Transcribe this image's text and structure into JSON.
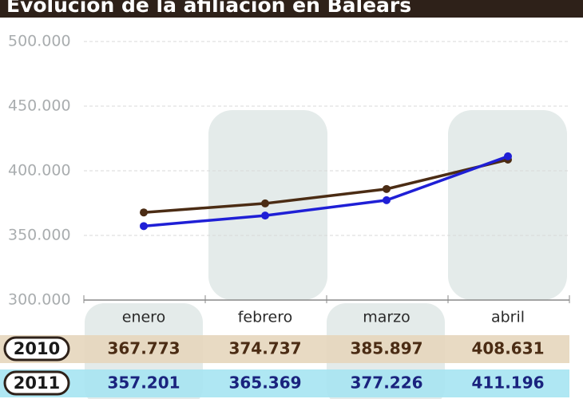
{
  "chart_data": {
    "type": "line",
    "title": "Evolución de la afiliación en Balears",
    "categories": [
      "enero",
      "febrero",
      "marzo",
      "abril"
    ],
    "series": [
      {
        "name": "2010",
        "color": "#4b2c14",
        "values": [
          367773,
          374737,
          385897,
          408631
        ],
        "value_labels": [
          "367.773",
          "374.737",
          "385.897",
          "408.631"
        ]
      },
      {
        "name": "2011",
        "color": "#1f1fd6",
        "values": [
          357201,
          365369,
          377226,
          411196
        ],
        "value_labels": [
          "357.201",
          "365.369",
          "377.226",
          "411.196"
        ]
      }
    ],
    "ylim": [
      300000,
      500000
    ],
    "yticks": [
      {
        "value": 300000,
        "label": "300.000"
      },
      {
        "value": 350000,
        "label": "350.000"
      },
      {
        "value": 400000,
        "label": "400.000"
      },
      {
        "value": 450000,
        "label": "450.000"
      },
      {
        "value": 500000,
        "label": "500.000"
      }
    ],
    "grid": true
  }
}
